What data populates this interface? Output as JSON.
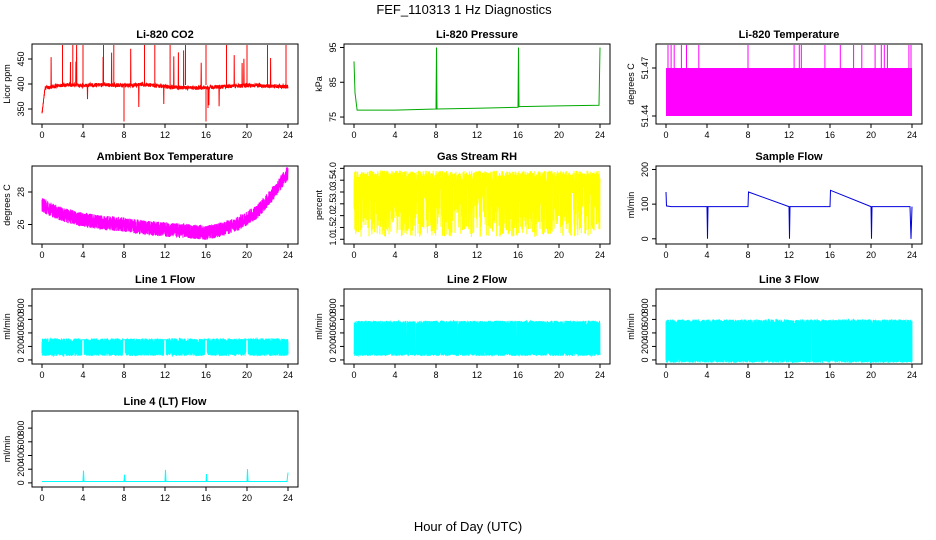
{
  "figure": {
    "title": "FEF_110313  1 Hz Diagnostics",
    "xlabel": "Hour of Day (UTC)"
  },
  "chart_data": [
    {
      "type": "line",
      "title": "Li-820 CO2",
      "ylabel": "Licor ppm",
      "xlim": [
        0,
        24
      ],
      "ylim": [
        320,
        480
      ],
      "xticks": [
        0,
        4,
        8,
        12,
        16,
        20,
        24
      ],
      "yticks": [
        350,
        400,
        450
      ],
      "color": "#ff0000",
      "series": [
        {
          "x": [
            0,
            0.3,
            1,
            2,
            3,
            4,
            5,
            6,
            7,
            8,
            9,
            10,
            11,
            12,
            13,
            14,
            15,
            16,
            17,
            18,
            19,
            20,
            21,
            22,
            23,
            24
          ],
          "y": [
            340,
            392,
            395,
            398,
            398,
            397,
            398,
            399,
            398,
            397,
            398,
            399,
            397,
            395,
            393,
            392,
            392,
            393,
            394,
            395,
            396,
            397,
            397,
            396,
            395,
            395
          ]
        }
      ]
    },
    {
      "type": "line",
      "title": "Li-820 Pressure",
      "ylabel": "kPa",
      "xlim": [
        0,
        24
      ],
      "ylim": [
        73,
        96
      ],
      "xticks": [
        0,
        4,
        8,
        12,
        16,
        20,
        24
      ],
      "yticks": [
        75,
        85,
        95
      ],
      "color": "#00aa00",
      "series": [
        {
          "x": [
            0,
            0.1,
            0.3,
            1,
            4,
            8,
            8.05,
            8.1,
            12,
            16,
            16.05,
            16.1,
            20,
            23.9,
            24
          ],
          "y": [
            91,
            82,
            77,
            77,
            77,
            77.3,
            95,
            77.3,
            77.5,
            77.8,
            95,
            78,
            78.2,
            78.4,
            95
          ]
        }
      ]
    },
    {
      "type": "line",
      "title": "Li-820 Temperature",
      "ylabel": "degrees C",
      "xlim": [
        0,
        24
      ],
      "ylim": [
        51.435,
        51.485
      ],
      "xticks": [
        0,
        4,
        8,
        12,
        16,
        20,
        24
      ],
      "yticks": [
        51.44,
        51.47
      ],
      "color": "#ff00ff",
      "series": [
        {
          "x": [
            0,
            24
          ],
          "y": [
            51.44,
            51.47
          ]
        }
      ]
    },
    {
      "type": "line",
      "title": "Ambient Box Temperature",
      "ylabel": "degrees C",
      "xlim": [
        0,
        24
      ],
      "ylim": [
        24.8,
        29.6
      ],
      "xticks": [
        0,
        4,
        8,
        12,
        16,
        20,
        24
      ],
      "yticks": [
        26,
        28
      ],
      "color": "#ff00ff",
      "series": [
        {
          "x": [
            0,
            1,
            2,
            4,
            6,
            8,
            10,
            12,
            14,
            16,
            17,
            18,
            19,
            20,
            21,
            22,
            23,
            24
          ],
          "y": [
            27.2,
            26.9,
            26.6,
            26.3,
            26.1,
            26.0,
            25.8,
            25.7,
            25.6,
            25.5,
            25.6,
            25.8,
            26.0,
            26.4,
            26.8,
            27.5,
            28.3,
            29.2
          ]
        }
      ]
    },
    {
      "type": "line",
      "title": "Gas Stream RH",
      "ylabel": "percent",
      "xlim": [
        0,
        24
      ],
      "ylim": [
        0.8,
        4.1
      ],
      "xticks": [
        0,
        4,
        8,
        12,
        16,
        20,
        24
      ],
      "yticks": [
        1.0,
        1.5,
        2.0,
        2.5,
        3.0,
        3.5,
        4.0
      ],
      "color": "#ffff00",
      "series": [
        {
          "x": [
            0,
            24
          ],
          "y": [
            3.5,
            3.6
          ]
        }
      ]
    },
    {
      "type": "line",
      "title": "Sample Flow",
      "ylabel": "ml/min",
      "xlim": [
        0,
        24
      ],
      "ylim": [
        -15,
        210
      ],
      "xticks": [
        0,
        4,
        8,
        12,
        16,
        20,
        24
      ],
      "yticks": [
        0,
        100,
        200
      ],
      "color": "#0000dd",
      "series": [
        {
          "x": [
            0,
            0.05,
            0.5,
            4,
            4.05,
            4.1,
            8,
            8.05,
            12,
            12.05,
            12.1,
            16,
            16.05,
            20,
            20.05,
            20.1,
            23.8,
            23.9,
            24
          ],
          "y": [
            135,
            95,
            93,
            93,
            0,
            93,
            93,
            135,
            93,
            0,
            93,
            93,
            140,
            93,
            0,
            93,
            93,
            0,
            93
          ]
        }
      ]
    },
    {
      "type": "line",
      "title": "Line 1 Flow",
      "ylabel": "ml/min",
      "xlim": [
        0,
        24
      ],
      "ylim": [
        -60,
        1050
      ],
      "xticks": [
        0,
        4,
        8,
        12,
        16,
        20,
        24
      ],
      "yticks": [
        0,
        200,
        400,
        600,
        800
      ],
      "color": "#00ffff",
      "series": [
        {
          "x": [
            0,
            24
          ],
          "y": [
            300,
            300
          ]
        }
      ]
    },
    {
      "type": "line",
      "title": "Line 2 Flow",
      "ylabel": "ml/min",
      "xlim": [
        0,
        24
      ],
      "ylim": [
        -60,
        1050
      ],
      "xticks": [
        0,
        4,
        8,
        12,
        16,
        20,
        24
      ],
      "yticks": [
        0,
        200,
        400,
        600,
        800
      ],
      "color": "#00ffff",
      "series": [
        {
          "x": [
            0,
            24
          ],
          "y": [
            560,
            560
          ]
        }
      ]
    },
    {
      "type": "line",
      "title": "Line 3 Flow",
      "ylabel": "ml/min",
      "xlim": [
        0,
        24
      ],
      "ylim": [
        -60,
        1050
      ],
      "xticks": [
        0,
        4,
        8,
        12,
        16,
        20,
        24
      ],
      "yticks": [
        0,
        200,
        400,
        600,
        800
      ],
      "color": "#00ffff",
      "series": [
        {
          "x": [
            0,
            24
          ],
          "y": [
            580,
            580
          ]
        }
      ]
    },
    {
      "type": "line",
      "title": "Line 4 (LT) Flow",
      "ylabel": "ml/min",
      "xlim": [
        0,
        24
      ],
      "ylim": [
        -60,
        1050
      ],
      "xticks": [
        0,
        4,
        8,
        12,
        16,
        20,
        24
      ],
      "yticks": [
        0,
        200,
        400,
        600,
        800
      ],
      "color": "#00ffff",
      "series": [
        {
          "x": [
            0,
            4,
            4.05,
            4.1,
            8,
            8.05,
            8.1,
            12,
            12.05,
            12.1,
            16,
            16.05,
            16.1,
            20,
            20.05,
            20.1,
            23.9,
            24
          ],
          "y": [
            20,
            20,
            180,
            20,
            20,
            120,
            20,
            20,
            190,
            20,
            20,
            130,
            20,
            20,
            200,
            20,
            20,
            150
          ]
        }
      ]
    }
  ]
}
